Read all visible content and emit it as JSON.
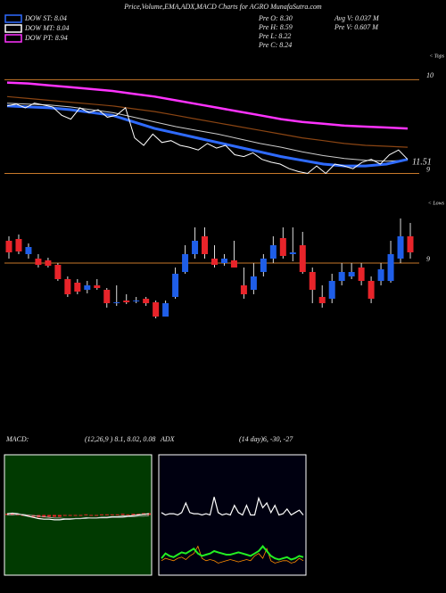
{
  "header": {
    "title": "Price,Volume,EMA,ADX,MACD Charts for AGRO MunafaSutra.com",
    "legend": [
      {
        "label": "DOW ST: 8.04",
        "color": "#2f6bff"
      },
      {
        "label": "DOW MT: 8.04",
        "color": "#ffffff"
      },
      {
        "label": "DOW PT: 8.94",
        "color": "#ff33ff"
      }
    ],
    "stats": [
      "Pre  O: 8.30",
      "Pre  H: 8.59",
      "Pre  L: 8.22",
      "Pre  C: 8.24",
      "Avg  V: 0.037 M",
      "Pre  V: 0.607 M"
    ]
  },
  "chart_data": [
    {
      "type": "line",
      "ylim": [
        8.9,
        10.28
      ],
      "yticks": [
        9,
        10
      ],
      "grid_color": "#c8782a",
      "annotations": [
        "< Tops",
        "11.51"
      ],
      "series": [
        {
          "color": "#ff33ff",
          "width": 2.5,
          "values": [
            9.97,
            9.96,
            9.94,
            9.92,
            9.9,
            9.88,
            9.85,
            9.82,
            9.78,
            9.74,
            9.7,
            9.66,
            9.62,
            9.58,
            9.55,
            9.53,
            9.51,
            9.5,
            9.49,
            9.48
          ]
        },
        {
          "color": "#8b4513",
          "width": 1.2,
          "values": [
            9.82,
            9.8,
            9.78,
            9.76,
            9.74,
            9.72,
            9.69,
            9.66,
            9.62,
            9.58,
            9.54,
            9.5,
            9.46,
            9.42,
            9.38,
            9.35,
            9.32,
            9.3,
            9.29,
            9.28
          ]
        },
        {
          "color": "#cccccc",
          "width": 1,
          "values": [
            9.75,
            9.74,
            9.73,
            9.71,
            9.68,
            9.65,
            9.6,
            9.55,
            9.5,
            9.46,
            9.42,
            9.37,
            9.32,
            9.28,
            9.23,
            9.19,
            9.16,
            9.14,
            9.13,
            9.14
          ]
        },
        {
          "color": "#2f6bff",
          "width": 3,
          "values": [
            9.72,
            9.71,
            9.7,
            9.68,
            9.65,
            9.62,
            9.55,
            9.48,
            9.43,
            9.38,
            9.33,
            9.28,
            9.23,
            9.18,
            9.14,
            9.1,
            9.08,
            9.08,
            9.1,
            9.15
          ]
        },
        {
          "color": "#ffffff",
          "width": 1,
          "values": [
            9.72,
            9.74,
            9.7,
            9.75,
            9.73,
            9.71,
            9.62,
            9.58,
            9.7,
            9.65,
            9.68,
            9.6,
            9.62,
            9.7,
            9.38,
            9.3,
            9.42,
            9.33,
            9.35,
            9.3,
            9.28,
            9.25,
            9.32,
            9.27,
            9.3,
            9.2,
            9.18,
            9.22,
            9.15,
            9.12,
            9.1,
            9.05,
            9.02,
            9.0,
            9.08,
            9.0,
            9.1,
            9.08,
            9.05,
            9.12,
            9.15,
            9.1,
            9.2,
            9.25,
            9.15
          ]
        }
      ]
    },
    {
      "type": "candlestick",
      "ylim": [
        8.35,
        9.75
      ],
      "yticks": [
        9
      ],
      "grid_color": "#c8782a",
      "annotations": [
        "< Lows"
      ],
      "up_color": "#1f5ee8",
      "down_color": "#e8242a",
      "open": [
        9.25,
        9.27,
        9.1,
        9.05,
        9.03,
        8.98,
        8.82,
        8.78,
        8.7,
        8.75,
        8.7,
        8.55,
        8.58,
        8.57,
        8.6,
        8.56,
        8.4,
        8.62,
        8.9,
        9.1,
        9.3,
        9.05,
        9.0,
        9.03,
        8.75,
        8.7,
        8.9,
        9.05,
        9.28,
        9.1,
        9.2,
        8.9,
        8.62,
        8.6,
        8.8,
        8.85,
        8.95,
        8.8,
        8.8,
        8.8,
        9.05,
        9.3
      ],
      "high": [
        9.3,
        9.32,
        9.22,
        9.1,
        9.06,
        9.0,
        8.85,
        8.82,
        8.8,
        8.82,
        8.72,
        8.75,
        8.65,
        8.62,
        8.62,
        8.58,
        8.58,
        8.95,
        9.2,
        9.4,
        9.4,
        9.2,
        9.1,
        9.25,
        8.95,
        9.0,
        9.1,
        9.3,
        9.4,
        9.4,
        9.35,
        8.95,
        8.75,
        8.88,
        9.0,
        9.0,
        9.0,
        8.85,
        9.0,
        9.25,
        9.5,
        9.45
      ],
      "low": [
        9.05,
        9.1,
        9.05,
        8.95,
        8.95,
        8.8,
        8.62,
        8.65,
        8.66,
        8.7,
        8.5,
        8.52,
        8.54,
        8.55,
        8.52,
        8.38,
        8.4,
        8.6,
        8.88,
        9.05,
        9.05,
        8.95,
        8.97,
        8.95,
        8.6,
        8.65,
        8.85,
        9.0,
        9.05,
        9.02,
        8.88,
        8.55,
        8.5,
        8.55,
        8.75,
        8.82,
        8.75,
        8.55,
        8.75,
        8.78,
        9.0,
        9.05
      ],
      "close": [
        9.12,
        9.13,
        9.18,
        8.98,
        8.97,
        8.82,
        8.65,
        8.68,
        8.75,
        8.72,
        8.55,
        8.56,
        8.56,
        8.58,
        8.55,
        8.4,
        8.55,
        8.88,
        9.1,
        9.25,
        9.1,
        8.98,
        9.05,
        8.95,
        8.65,
        8.85,
        9.05,
        9.2,
        9.08,
        9.12,
        8.9,
        8.7,
        8.55,
        8.8,
        8.9,
        8.9,
        8.8,
        8.6,
        8.93,
        9.1,
        9.3,
        9.12
      ]
    },
    {
      "type": "macd",
      "title": "MACD:",
      "subtitle": "(12,26,9 ) 8.1, 8.02, 0.08",
      "ylim": [
        -1,
        1
      ],
      "background": "#013a01",
      "series": [
        {
          "color": "#ffffff",
          "width": 1.2,
          "values": [
            0.02,
            0.03,
            0.02,
            0.0,
            -0.02,
            -0.04,
            -0.06,
            -0.07,
            -0.07,
            -0.08,
            -0.08,
            -0.07,
            -0.07,
            -0.06,
            -0.06,
            -0.05,
            -0.05,
            -0.05,
            -0.04,
            -0.04,
            -0.03,
            -0.03,
            -0.02,
            -0.02,
            -0.01,
            0.0,
            0.01,
            0.02
          ]
        },
        {
          "color": "#bbbbbb",
          "width": 0.8,
          "values": [
            0.0,
            0.0,
            0.01,
            0.01,
            0.0,
            -0.01,
            -0.02,
            -0.03,
            -0.04,
            -0.05,
            -0.05,
            -0.06,
            -0.06,
            -0.06,
            -0.06,
            -0.06,
            -0.05,
            -0.05,
            -0.05,
            -0.05,
            -0.04,
            -0.04,
            -0.04,
            -0.03,
            -0.03,
            -0.02,
            -0.02,
            -0.01
          ]
        }
      ],
      "histogram": {
        "color": "#e8242a",
        "values": [
          0.02,
          0.03,
          0.01,
          -0.01,
          -0.02,
          -0.03,
          -0.04,
          -0.04,
          -0.03,
          -0.03,
          -0.03,
          -0.01,
          -0.01,
          0.0,
          0.0,
          0.01,
          0.0,
          0.0,
          0.01,
          0.01,
          0.01,
          0.01,
          0.02,
          0.01,
          0.02,
          0.02,
          0.03,
          0.03
        ]
      }
    },
    {
      "type": "adx",
      "title": "ADX",
      "subtitle": "(14 day)6, -30, -27",
      "ylim": [
        0,
        100
      ],
      "background": "#000010",
      "series": [
        {
          "color": "#ffffff",
          "width": 1.2,
          "values": [
            52,
            50,
            51,
            51,
            50,
            52,
            60,
            52,
            51,
            51,
            50,
            51,
            50,
            65,
            52,
            50,
            51,
            50,
            58,
            52,
            50,
            58,
            50,
            50,
            64,
            56,
            60,
            52,
            58,
            50,
            51,
            55,
            50,
            52,
            54,
            50
          ]
        },
        {
          "color": "#ff8c00",
          "width": 0.8,
          "values": [
            12,
            14,
            13,
            12,
            14,
            15,
            13,
            16,
            18,
            24,
            14,
            12,
            13,
            12,
            10,
            11,
            12,
            13,
            12,
            11,
            12,
            13,
            12,
            16,
            18,
            14,
            22,
            12,
            10,
            11,
            12,
            12,
            10,
            11,
            14,
            12
          ]
        },
        {
          "color": "#22ee22",
          "width": 2,
          "values": [
            14,
            18,
            16,
            15,
            17,
            19,
            18,
            20,
            22,
            18,
            16,
            17,
            18,
            20,
            19,
            18,
            17,
            17,
            18,
            19,
            18,
            17,
            16,
            18,
            20,
            24,
            20,
            16,
            14,
            13,
            14,
            15,
            13,
            14,
            16,
            15
          ]
        }
      ]
    }
  ]
}
